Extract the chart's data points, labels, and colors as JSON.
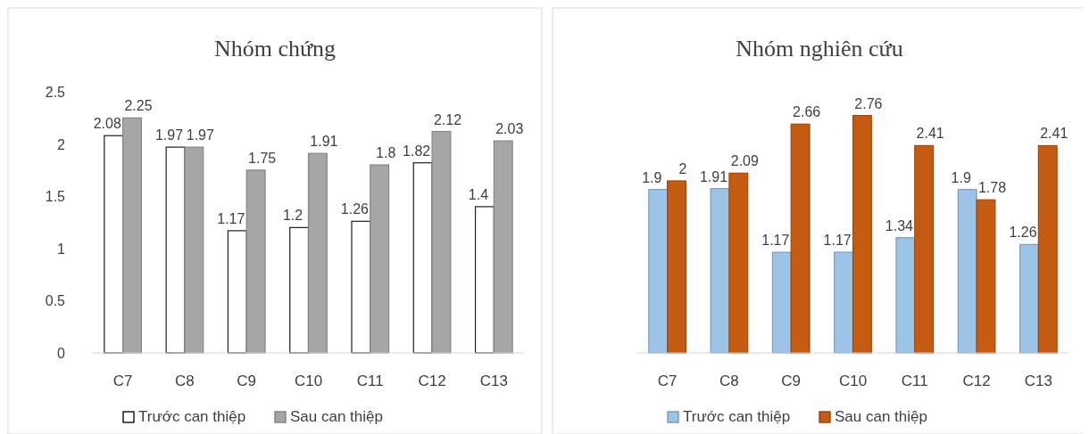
{
  "chart_data": [
    {
      "type": "bar",
      "title": "Nhóm chứng",
      "categories": [
        "C7",
        "C8",
        "C9",
        "C10",
        "C11",
        "C12",
        "C13"
      ],
      "series": [
        {
          "name": "Trước can thiệp",
          "color": "#ffffff",
          "values": [
            2.08,
            1.97,
            1.17,
            1.2,
            1.26,
            1.82,
            1.4
          ]
        },
        {
          "name": "Sau can thiệp",
          "color": "#a6a6a6",
          "values": [
            2.25,
            1.97,
            1.75,
            1.91,
            1.8,
            2.12,
            2.03
          ]
        }
      ],
      "ylim": [
        0,
        2.5
      ],
      "yticks": [
        0,
        0.5,
        1,
        1.5,
        2,
        2.5
      ],
      "data_labels": true,
      "legend": "bottom"
    },
    {
      "type": "bar",
      "title": "Nhóm nghiên cứu",
      "categories": [
        "C7",
        "C8",
        "C9",
        "C10",
        "C11",
        "C12",
        "C13"
      ],
      "series": [
        {
          "name": "Trước can thiệp",
          "color": "#9dc3e6",
          "values": [
            1.9,
            1.91,
            1.17,
            1.17,
            1.34,
            1.9,
            1.26
          ]
        },
        {
          "name": "Sau can thiệp",
          "color": "#c55a11",
          "values": [
            2,
            2.09,
            2.66,
            2.76,
            2.41,
            1.78,
            2.41
          ]
        }
      ],
      "tick_labels": "x",
      "data_labels": true,
      "legend": "bottom"
    }
  ]
}
